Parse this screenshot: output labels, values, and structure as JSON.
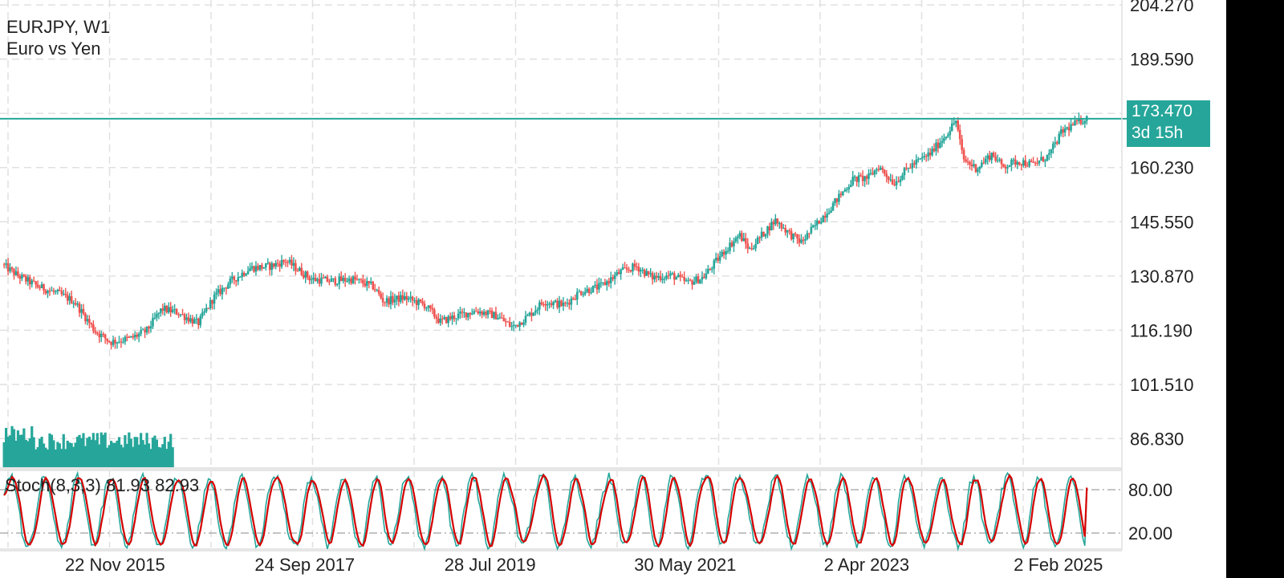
{
  "header": {
    "symbol_line": "EURJPY, W1",
    "description_line": "Euro vs Yen"
  },
  "current_price": {
    "value_label": "173.470",
    "countdown_label": "3d 15h"
  },
  "stoch": {
    "label": "Stoch(8,3,3) 81.93 82.93"
  },
  "colors": {
    "bull": "#26a69a",
    "bear": "#ef5350",
    "stoch_main": "#26a69a",
    "stoch_signal": "#d50000",
    "grid": "#e0e0e0",
    "price_line": "#26a69a"
  },
  "chart_data": {
    "type": "candlestick",
    "timeframe": "W1",
    "x_tick_labels": [
      "22 Nov 2015",
      "24 Sep 2017",
      "28 Jul 2019",
      "30 May 2021",
      "2 Apr 2023",
      "2 Feb 2025"
    ],
    "x_ticks": [
      2015.89,
      2017.73,
      2019.57,
      2021.41,
      2023.25,
      2025.09
    ],
    "y_tick_labels": [
      "86.830",
      "101.510",
      "116.190",
      "130.870",
      "145.550",
      "160.230",
      "189.590",
      "204.270"
    ],
    "y_ticks": [
      86.83,
      101.51,
      116.19,
      130.87,
      145.55,
      160.23,
      189.59,
      204.27
    ],
    "xlim": [
      2015.26,
      2026.14
    ],
    "ylim": [
      79.1,
      205.6
    ],
    "grid": true,
    "last_price": 173.47,
    "price_path": [
      [
        2015.3,
        134.0
      ],
      [
        2015.45,
        131.0
      ],
      [
        2015.65,
        128.0
      ],
      [
        2015.85,
        126.0
      ],
      [
        2016.0,
        124.0
      ],
      [
        2016.1,
        120.0
      ],
      [
        2016.2,
        116.0
      ],
      [
        2016.35,
        113.0
      ],
      [
        2016.55,
        114.0
      ],
      [
        2016.7,
        116.0
      ],
      [
        2016.85,
        122.0
      ],
      [
        2017.0,
        121.0
      ],
      [
        2017.2,
        118.0
      ],
      [
        2017.35,
        125.0
      ],
      [
        2017.5,
        129.0
      ],
      [
        2017.7,
        133.0
      ],
      [
        2017.9,
        133.5
      ],
      [
        2018.05,
        135.0
      ],
      [
        2018.15,
        133.0
      ],
      [
        2018.3,
        130.0
      ],
      [
        2018.5,
        129.5
      ],
      [
        2018.7,
        130.0
      ],
      [
        2018.9,
        128.0
      ],
      [
        2019.0,
        124.0
      ],
      [
        2019.2,
        125.0
      ],
      [
        2019.4,
        123.0
      ],
      [
        2019.55,
        118.5
      ],
      [
        2019.7,
        120.0
      ],
      [
        2019.9,
        121.5
      ],
      [
        2020.1,
        120.0
      ],
      [
        2020.25,
        117.0
      ],
      [
        2020.4,
        120.0
      ],
      [
        2020.55,
        124.0
      ],
      [
        2020.75,
        123.0
      ],
      [
        2020.9,
        126.5
      ],
      [
        2021.1,
        128.0
      ],
      [
        2021.3,
        132.0
      ],
      [
        2021.45,
        133.5
      ],
      [
        2021.6,
        130.5
      ],
      [
        2021.8,
        131.0
      ],
      [
        2021.95,
        129.0
      ],
      [
        2022.1,
        130.5
      ],
      [
        2022.3,
        137.5
      ],
      [
        2022.45,
        142.0
      ],
      [
        2022.55,
        138.0
      ],
      [
        2022.7,
        143.0
      ],
      [
        2022.8,
        146.0
      ],
      [
        2022.95,
        142.0
      ],
      [
        2023.05,
        140.0
      ],
      [
        2023.2,
        145.0
      ],
      [
        2023.35,
        150.0
      ],
      [
        2023.55,
        157.0
      ],
      [
        2023.7,
        157.5
      ],
      [
        2023.8,
        160.5
      ],
      [
        2023.95,
        156.0
      ],
      [
        2024.1,
        160.5
      ],
      [
        2024.3,
        164.0
      ],
      [
        2024.45,
        169.0
      ],
      [
        2024.55,
        173.0
      ],
      [
        2024.62,
        162.5
      ],
      [
        2024.75,
        160.0
      ],
      [
        2024.9,
        164.0
      ],
      [
        2025.0,
        160.5
      ],
      [
        2025.15,
        162.0
      ],
      [
        2025.3,
        161.0
      ],
      [
        2025.45,
        163.5
      ],
      [
        2025.58,
        170.0
      ],
      [
        2025.7,
        172.0
      ],
      [
        2025.8,
        173.47
      ]
    ],
    "volume_range": [
      2015.3,
      2016.95
    ],
    "stoch_levels": [
      80.0,
      20.0
    ],
    "stoch_ylim": [
      0,
      100
    ],
    "stoch_last": {
      "main": 81.93,
      "signal": 82.93
    }
  }
}
